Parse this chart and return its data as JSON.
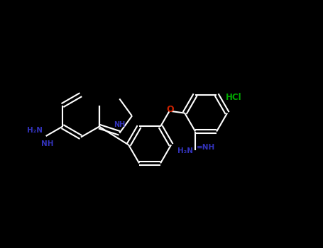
{
  "background_color": "#000000",
  "bond_color": "#ffffff",
  "N_color": "#3333bb",
  "O_color": "#cc2200",
  "Cl_color": "#00aa00",
  "lw": 1.5,
  "dbo": 0.055,
  "figsize": [
    4.55,
    3.5
  ],
  "dpi": 100,
  "xlim": [
    -4.2,
    4.5
  ],
  "ylim": [
    -2.2,
    2.2
  ]
}
